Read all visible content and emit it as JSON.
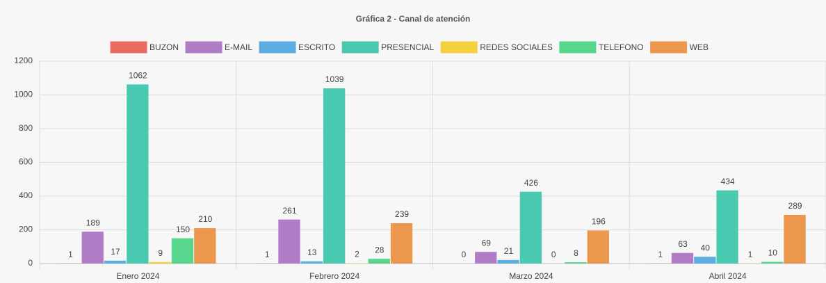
{
  "chart_data": {
    "type": "bar",
    "title": "Gráfica 2 - Canal de atención",
    "categories": [
      "Enero 2024",
      "Febrero 2024",
      "Marzo 2024",
      "Abril 2024"
    ],
    "series": [
      {
        "name": "BUZON",
        "color": "#ec6b61",
        "values": [
          1,
          1,
          0,
          1
        ]
      },
      {
        "name": "E-MAIL",
        "color": "#b07cc6",
        "values": [
          189,
          261,
          69,
          63
        ]
      },
      {
        "name": "ESCRITO",
        "color": "#5dade2",
        "values": [
          17,
          13,
          21,
          40
        ]
      },
      {
        "name": "PRESENCIAL",
        "color": "#48c9b0",
        "values": [
          1062,
          1039,
          426,
          434
        ]
      },
      {
        "name": "REDES SOCIALES",
        "color": "#f4d03f",
        "values": [
          9,
          2,
          0,
          1
        ]
      },
      {
        "name": "TELEFONO",
        "color": "#58d68d",
        "values": [
          150,
          28,
          8,
          10
        ]
      },
      {
        "name": "WEB",
        "color": "#eb984e",
        "values": [
          210,
          239,
          196,
          289
        ]
      }
    ],
    "ylim": [
      0,
      1200
    ],
    "yticks": [
      0,
      200,
      400,
      600,
      800,
      1000,
      1200
    ],
    "grid": true,
    "legend": "top"
  }
}
